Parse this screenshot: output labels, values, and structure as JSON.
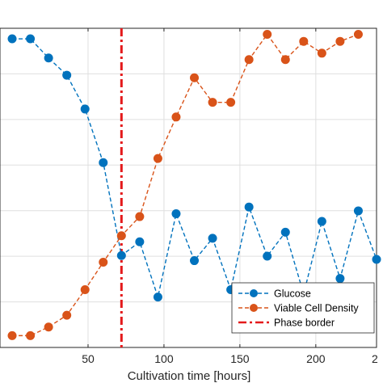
{
  "chart_data": {
    "type": "line",
    "xlabel": "Cultivation time [hours]",
    "ylabel": "",
    "xlim": [
      0,
      240
    ],
    "ylim": [
      0,
      1
    ],
    "x_ticks": [
      50,
      100,
      150,
      200
    ],
    "x_tick_labels": [
      "50",
      "100",
      "150",
      "200"
    ],
    "x_tick_label_right_edge": "2",
    "grid": true,
    "legend_position": "bottom-right",
    "series": [
      {
        "name": "Glucose",
        "color": "#0072BD",
        "line_style": "dashed",
        "marker": "circle",
        "x": [
          0,
          12,
          24,
          36,
          48,
          60,
          72,
          84,
          96,
          108,
          120,
          132,
          144,
          156,
          168,
          180,
          192,
          204,
          216,
          228,
          240
        ],
        "y": [
          0.967,
          0.967,
          0.907,
          0.853,
          0.747,
          0.579,
          0.288,
          0.331,
          0.158,
          0.419,
          0.272,
          0.342,
          0.181,
          0.44,
          0.286,
          0.361,
          0.168,
          0.395,
          0.216,
          0.428,
          0.276
        ]
      },
      {
        "name": "Viable Cell Density",
        "color": "#D95319",
        "line_style": "dashed",
        "marker": "circle",
        "x": [
          0,
          12,
          24,
          36,
          48,
          60,
          72,
          84,
          96,
          108,
          120,
          132,
          144,
          156,
          168,
          180,
          192,
          204,
          216,
          228
        ],
        "y": [
          0.037,
          0.037,
          0.064,
          0.101,
          0.181,
          0.267,
          0.35,
          0.41,
          0.592,
          0.722,
          0.845,
          0.768,
          0.768,
          0.902,
          0.981,
          0.902,
          0.959,
          0.922,
          0.959,
          0.981
        ]
      }
    ],
    "reference_lines": [
      {
        "name": "Phase border",
        "orientation": "vertical",
        "x": 72,
        "color": "#E41A1C",
        "line_style": "dash-dot"
      }
    ]
  }
}
